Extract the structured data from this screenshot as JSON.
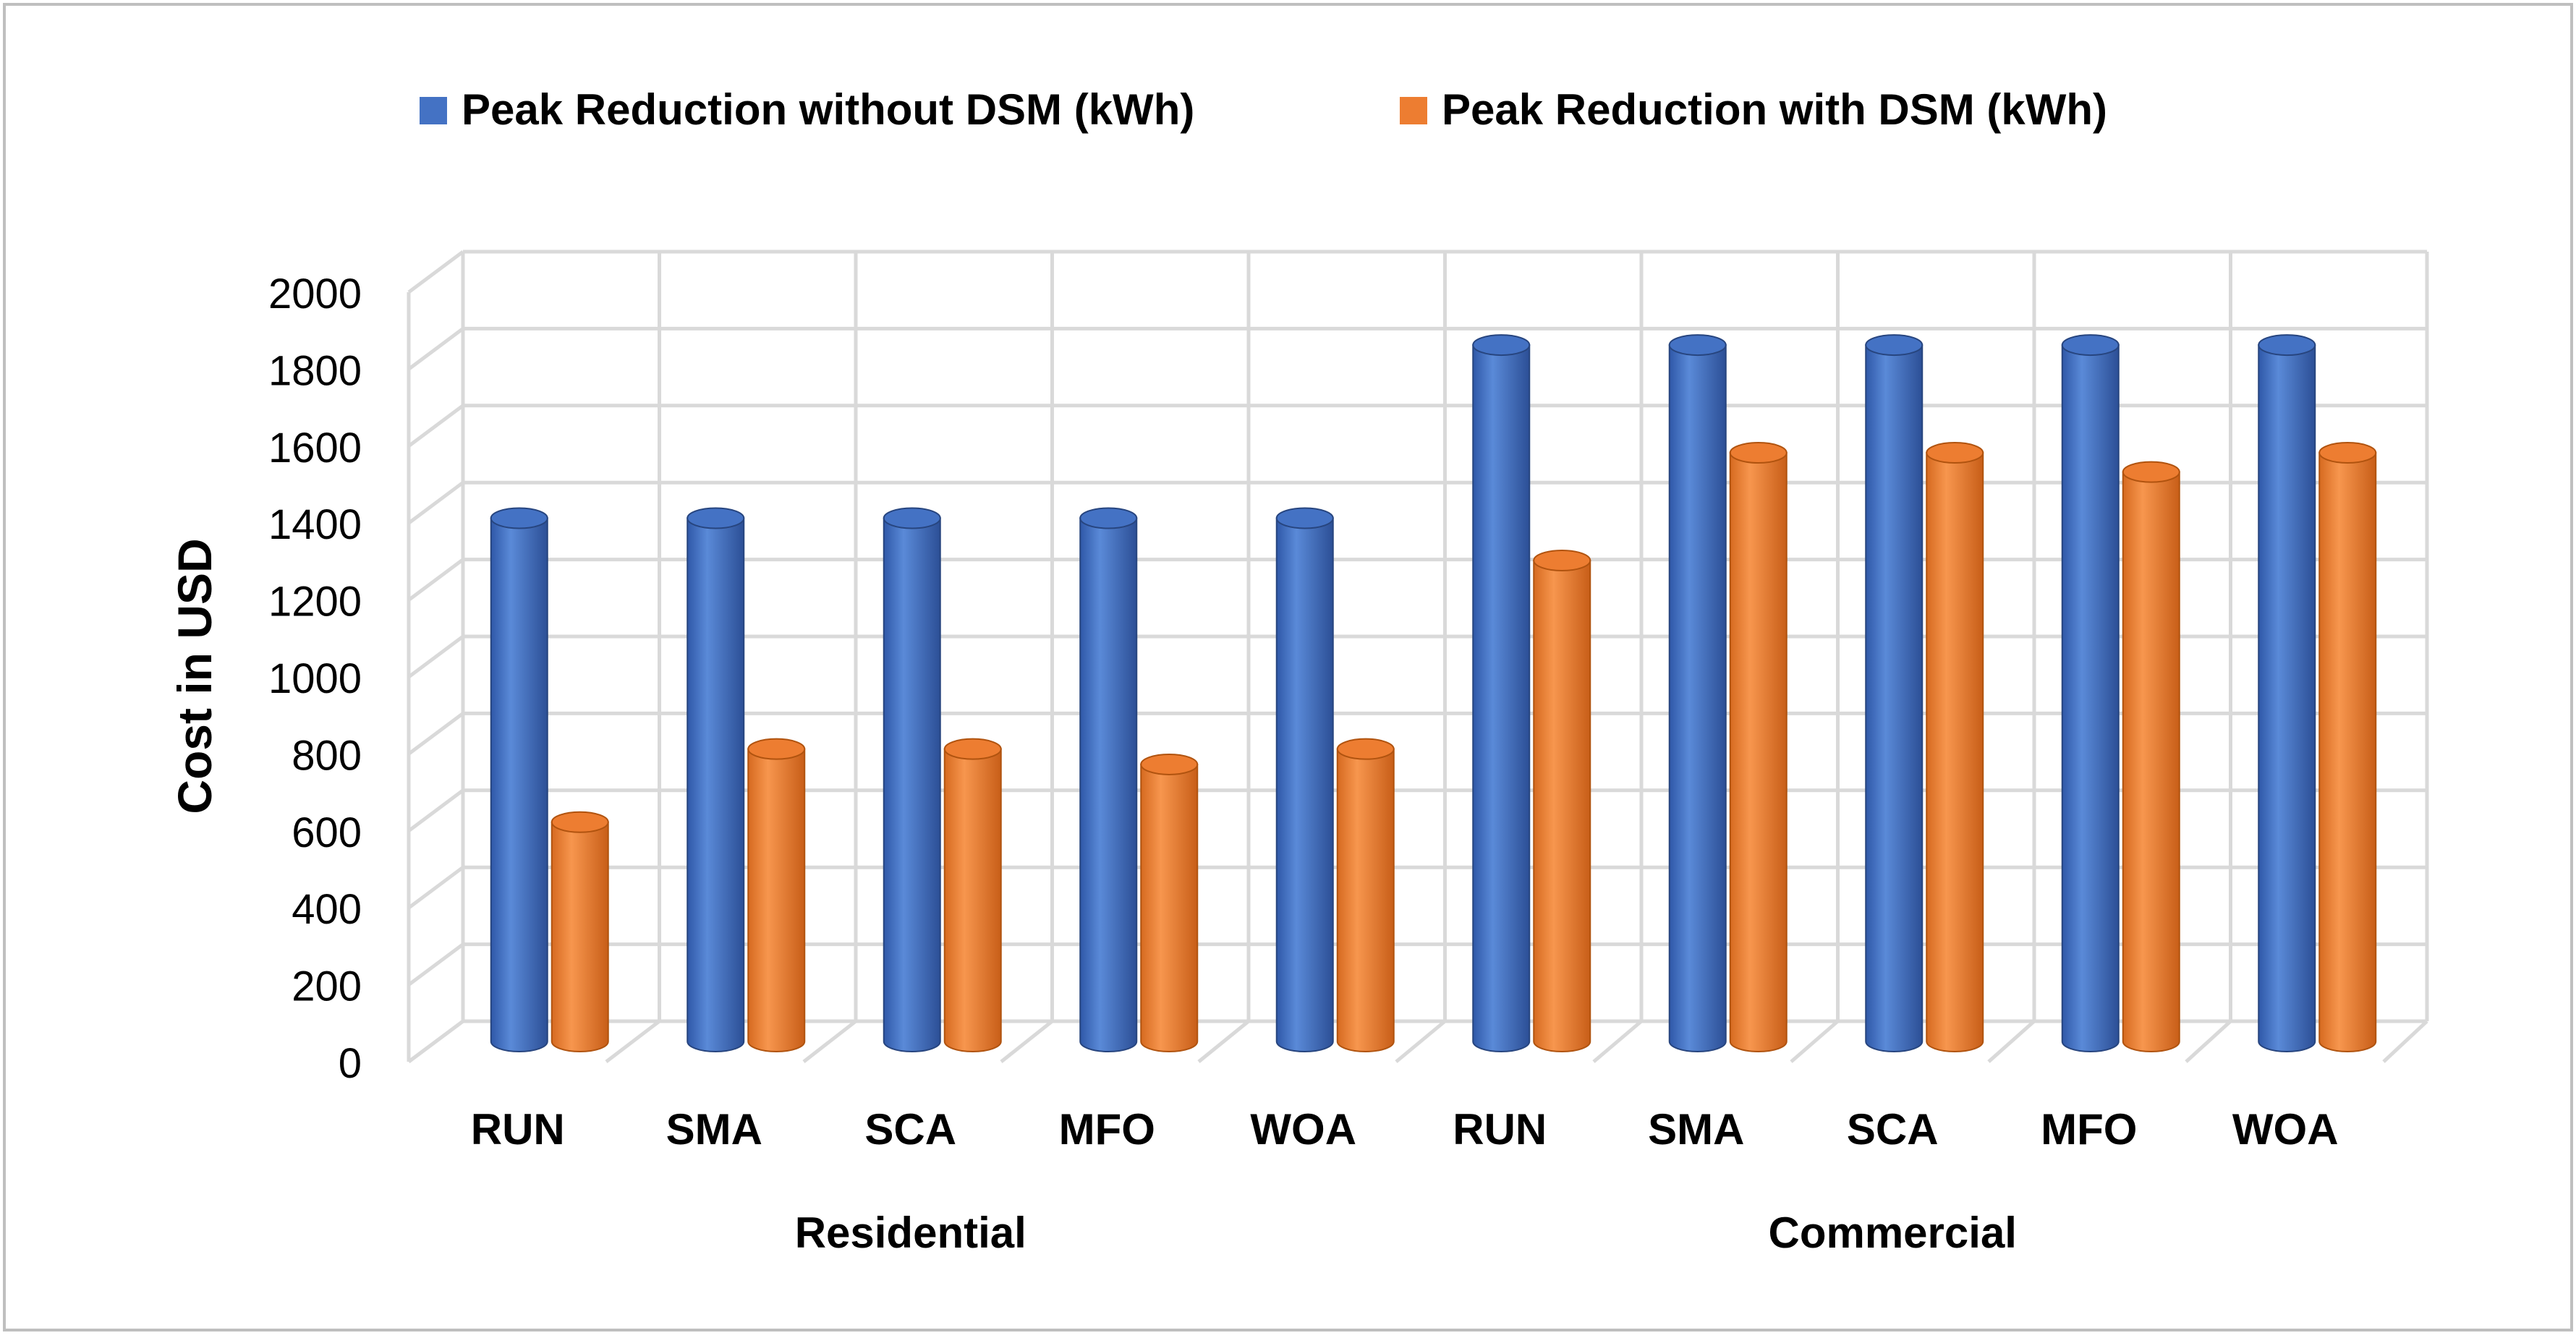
{
  "chart_data": {
    "type": "bar",
    "style": "3d-cylinder",
    "ylabel": "Cost in USD",
    "ylim": [
      0,
      2000
    ],
    "yticks": [
      "0",
      "200",
      "400",
      "600",
      "800",
      "1000",
      "1200",
      "1400",
      "1600",
      "1800",
      "2000"
    ],
    "categories": [
      "RUN",
      "SMA",
      "SCA",
      "MFO",
      "WOA",
      "RUN",
      "SMA",
      "SCA",
      "MFO",
      "WOA"
    ],
    "groups": [
      {
        "label": "Residential",
        "start": 0,
        "end": 4
      },
      {
        "label": "Commercial",
        "start": 5,
        "end": 9
      }
    ],
    "series": [
      {
        "name": "Peak Reduction without DSM (kWh)",
        "color": "#4472c4",
        "values": [
          1360,
          1360,
          1360,
          1360,
          1360,
          1810,
          1810,
          1810,
          1810,
          1810
        ]
      },
      {
        "name": "Peak Reduction with DSM (kWh)",
        "color": "#ed7d31",
        "values": [
          570,
          760,
          760,
          720,
          760,
          1250,
          1530,
          1530,
          1480,
          1530
        ]
      }
    ],
    "legend_position": "top",
    "grid": true
  }
}
